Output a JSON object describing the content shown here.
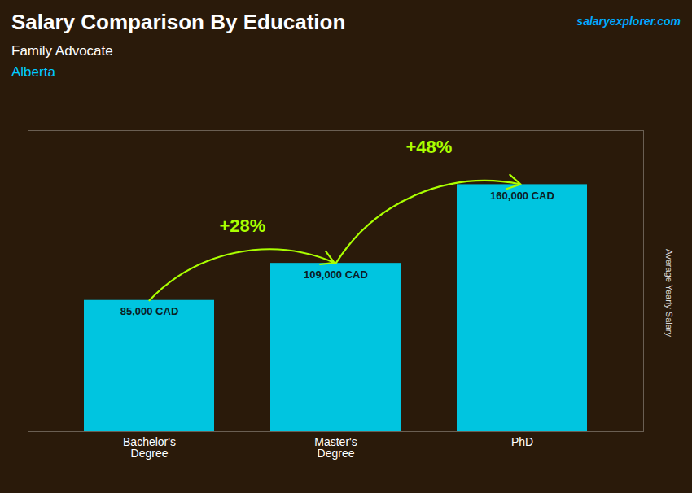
{
  "chart_data": {
    "type": "bar",
    "title": "Salary Comparison By Education",
    "subtitle": "Family Advocate",
    "location": "Alberta",
    "source": "salaryexplorer.com",
    "ylabel": "Average Yearly Salary",
    "categories": [
      "Bachelor's\nDegree",
      "Master's\nDegree",
      "PhD"
    ],
    "values": [
      85000,
      109000,
      160000
    ],
    "value_labels": [
      "85,000 CAD",
      "109,000 CAD",
      "160,000 CAD"
    ],
    "data_labels": true,
    "color": "#00c5e0",
    "annotations": [
      {
        "text": "+28%",
        "color": "#aaff00"
      },
      {
        "text": "+48%",
        "color": "#aaff00"
      }
    ],
    "ylim": [
      0,
      195000
    ],
    "tick_labels": "x",
    "grid": false
  }
}
